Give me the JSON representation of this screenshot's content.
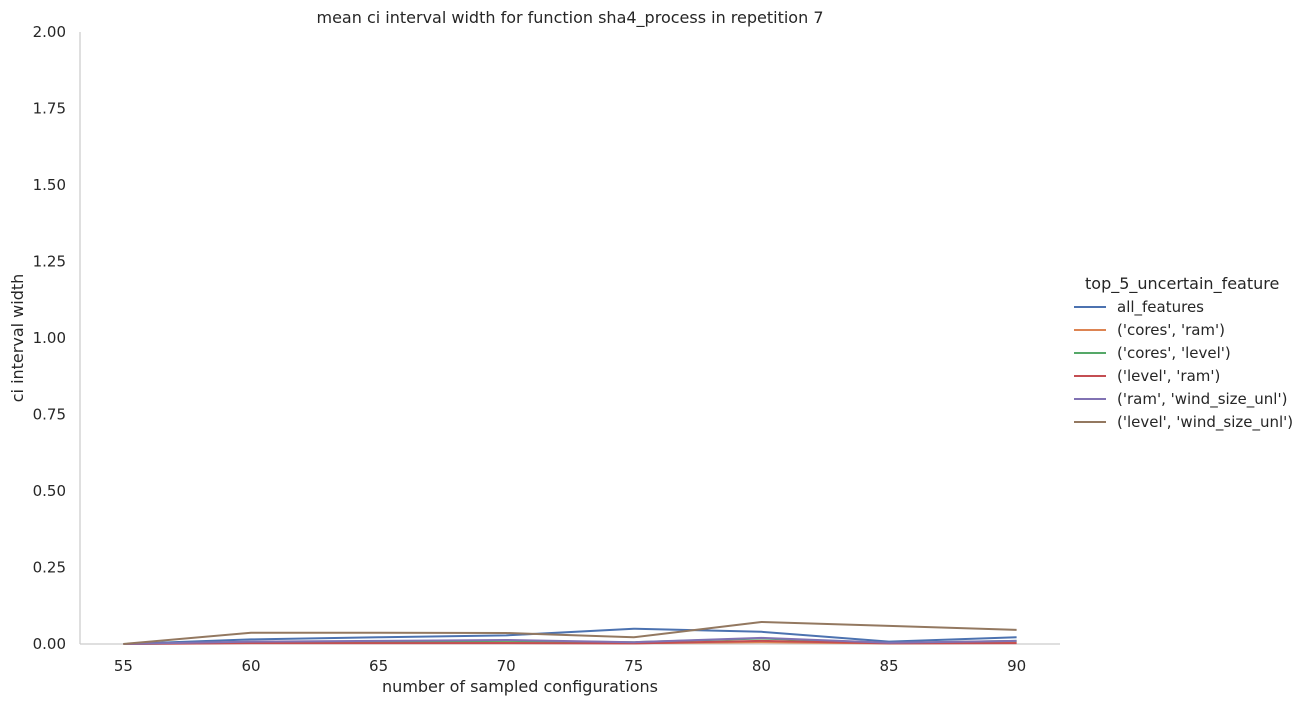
{
  "chart_data": {
    "type": "line",
    "title": "mean ci interval width for function sha4_process in repetition 7",
    "xlabel": "number of sampled configurations",
    "ylabel": "ci interval width",
    "x": [
      55,
      60,
      65,
      70,
      75,
      80,
      85,
      90
    ],
    "xlim": [
      53.3,
      91.7
    ],
    "ylim": [
      0,
      2
    ],
    "xticks": [
      "55",
      "60",
      "65",
      "70",
      "75",
      "80",
      "85",
      "90"
    ],
    "yticks": [
      "0.00",
      "0.25",
      "0.50",
      "0.75",
      "1.00",
      "1.25",
      "1.50",
      "1.75",
      "2.00"
    ],
    "ytick_values": [
      0,
      0.25,
      0.5,
      0.75,
      1.0,
      1.25,
      1.5,
      1.75,
      2.0
    ],
    "legend_title": "top_5_uncertain_feature",
    "legend_position": "right",
    "series": [
      {
        "name": "all_features",
        "color": "#4c72b0",
        "values": [
          0.0,
          0.015,
          0.022,
          0.028,
          0.05,
          0.04,
          0.008,
          0.022
        ]
      },
      {
        "name": "('cores', 'ram')",
        "color": "#dd8452",
        "values": [
          0.0,
          0.004,
          0.004,
          0.004,
          0.003,
          0.006,
          0.002,
          0.004
        ]
      },
      {
        "name": "('cores', 'level')",
        "color": "#55a868",
        "values": [
          0.0,
          0.006,
          0.008,
          0.01,
          0.006,
          0.018,
          0.003,
          0.01
        ]
      },
      {
        "name": "('level', 'ram')",
        "color": "#c44e52",
        "values": [
          0.0,
          0.003,
          0.003,
          0.003,
          0.002,
          0.01,
          0.002,
          0.003
        ]
      },
      {
        "name": "('ram', 'wind_size_unl')",
        "color": "#8172b3",
        "values": [
          0.0,
          0.008,
          0.01,
          0.013,
          0.006,
          0.02,
          0.004,
          0.01
        ]
      },
      {
        "name": "('level', 'wind_size_unl')",
        "color": "#937860",
        "values": [
          0.0,
          0.037,
          0.037,
          0.036,
          0.022,
          0.072,
          0.059,
          0.046
        ]
      }
    ]
  }
}
